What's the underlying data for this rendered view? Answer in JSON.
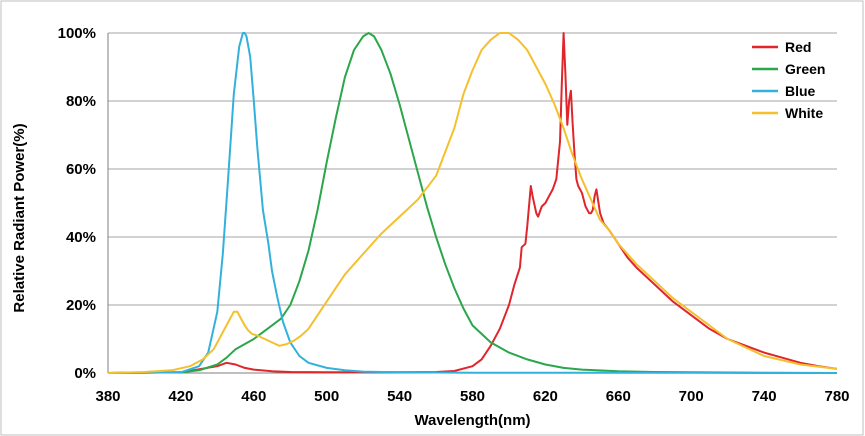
{
  "chart_data": {
    "type": "line",
    "title": "",
    "xlabel": "Wavelength(nm)",
    "ylabel": "Relative Radiant Power(%)",
    "xlim": [
      380,
      780
    ],
    "ylim": [
      0,
      100
    ],
    "x_ticks": [
      380,
      420,
      460,
      500,
      540,
      580,
      620,
      660,
      700,
      740,
      780
    ],
    "x_tick_labels": [
      "380",
      "420",
      "460",
      "500",
      "540",
      "580",
      "620",
      "660",
      "700",
      "740",
      "780"
    ],
    "y_ticks": [
      0,
      20,
      40,
      60,
      80,
      100
    ],
    "y_tick_labels": [
      "0%",
      "20%",
      "40%",
      "60%",
      "80%",
      "100%"
    ],
    "grid": "horizontal",
    "legend_position": "top-right",
    "series": [
      {
        "name": "Red",
        "color": "#e0252b",
        "x": [
          380,
          420,
          440,
          445,
          450,
          455,
          460,
          470,
          480,
          500,
          540,
          560,
          570,
          580,
          585,
          590,
          595,
          600,
          603,
          606,
          607,
          609,
          610,
          612,
          613,
          615,
          616,
          618,
          620,
          622,
          624,
          626,
          628,
          629,
          630,
          631,
          632,
          633,
          634,
          635,
          636,
          637,
          638,
          640,
          642,
          644,
          645,
          646,
          647,
          648,
          650,
          652,
          655,
          660,
          665,
          670,
          680,
          690,
          700,
          710,
          720,
          730,
          740,
          750,
          760,
          770,
          780
        ],
        "y": [
          0,
          0.2,
          2,
          3,
          2.5,
          1.5,
          1,
          0.5,
          0.3,
          0.2,
          0.2,
          0.3,
          0.6,
          2,
          4,
          8,
          13,
          20,
          26,
          31,
          37,
          38,
          43,
          55,
          52,
          47,
          46,
          49,
          50,
          52,
          54,
          57,
          68,
          85,
          100,
          88,
          73,
          80,
          83,
          73,
          64,
          57,
          55,
          53,
          49,
          47,
          47,
          48,
          52,
          54,
          47,
          44,
          42,
          38,
          34,
          31,
          26,
          21,
          17,
          13,
          10,
          8,
          6,
          4.5,
          3,
          2,
          1.2
        ]
      },
      {
        "name": "Green",
        "color": "#2ba64b",
        "x": [
          380,
          420,
          430,
          440,
          445,
          450,
          455,
          460,
          465,
          470,
          475,
          480,
          485,
          490,
          495,
          500,
          505,
          510,
          515,
          520,
          523,
          526,
          530,
          535,
          540,
          545,
          550,
          555,
          560,
          565,
          570,
          575,
          580,
          590,
          600,
          610,
          620,
          630,
          640,
          660,
          680,
          700,
          740,
          780
        ],
        "y": [
          0,
          0.2,
          0.8,
          2.5,
          4.5,
          7,
          8.5,
          10,
          12,
          14,
          16,
          20,
          27,
          36,
          48,
          62,
          75,
          87,
          95,
          99,
          100,
          99,
          95,
          88,
          79,
          69,
          59,
          49,
          40,
          32,
          25,
          19,
          14,
          9,
          6,
          4,
          2.5,
          1.5,
          1,
          0.5,
          0.3,
          0.2,
          0.1,
          0
        ]
      },
      {
        "name": "Blue",
        "color": "#32b1dc",
        "x": [
          380,
          420,
          430,
          435,
          440,
          443,
          446,
          449,
          452,
          454,
          455,
          456,
          458,
          460,
          462,
          465,
          468,
          470,
          473,
          476,
          480,
          485,
          490,
          500,
          510,
          520,
          540,
          580,
          620,
          660,
          700,
          740,
          780
        ],
        "y": [
          0,
          0.2,
          2,
          6,
          18,
          35,
          58,
          82,
          96,
          100,
          100,
          99,
          93,
          80,
          66,
          48,
          38,
          30,
          22,
          15,
          9,
          5,
          3,
          1.5,
          0.8,
          0.4,
          0.2,
          0.1,
          0.1,
          0.1,
          0.1,
          0,
          0
        ]
      },
      {
        "name": "White",
        "color": "#f5c02d",
        "x": [
          380,
          400,
          415,
          425,
          432,
          438,
          442,
          446,
          449,
          451,
          453,
          455,
          457,
          459,
          462,
          466,
          470,
          474,
          478,
          482,
          486,
          490,
          495,
          500,
          510,
          520,
          530,
          540,
          550,
          560,
          565,
          570,
          575,
          580,
          585,
          590,
          595,
          600,
          605,
          610,
          615,
          620,
          625,
          630,
          635,
          640,
          645,
          650,
          655,
          660,
          670,
          680,
          690,
          700,
          720,
          740,
          760,
          780
        ],
        "y": [
          0,
          0.3,
          0.8,
          2,
          4,
          7,
          11,
          15,
          18,
          18,
          16,
          14,
          12.5,
          11.5,
          11,
          10,
          9,
          8,
          8.5,
          9.5,
          11,
          13,
          17,
          21,
          29,
          35,
          41,
          46,
          51,
          58,
          65,
          72,
          82,
          89,
          95,
          98,
          100,
          100,
          98,
          95,
          90,
          85,
          79,
          72,
          64,
          57,
          51,
          45,
          42,
          38,
          32,
          27,
          22,
          18,
          10,
          5,
          2.5,
          1.2
        ]
      }
    ]
  }
}
